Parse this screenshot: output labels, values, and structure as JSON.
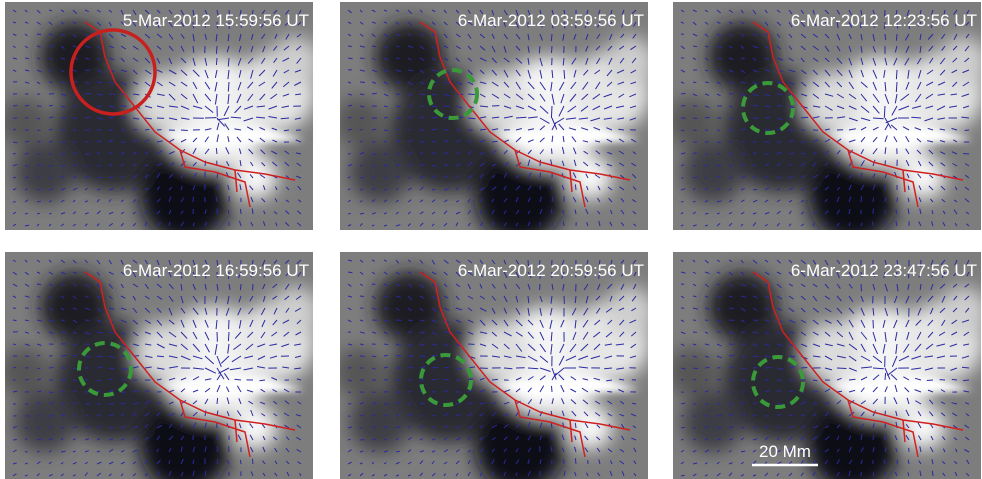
{
  "panels": [
    {
      "timestamp": "5-Mar-2012 15:59:56 UT"
    },
    {
      "timestamp": "6-Mar-2012 03:59:56 UT"
    },
    {
      "timestamp": "6-Mar-2012 12:23:56 UT"
    },
    {
      "timestamp": "6-Mar-2012 16:59:56 UT"
    },
    {
      "timestamp": "6-Mar-2012 20:59:56 UT"
    },
    {
      "timestamp": "6-Mar-2012 23:47:56 UT"
    }
  ],
  "scale_bar": {
    "label": "20 Mm"
  }
}
